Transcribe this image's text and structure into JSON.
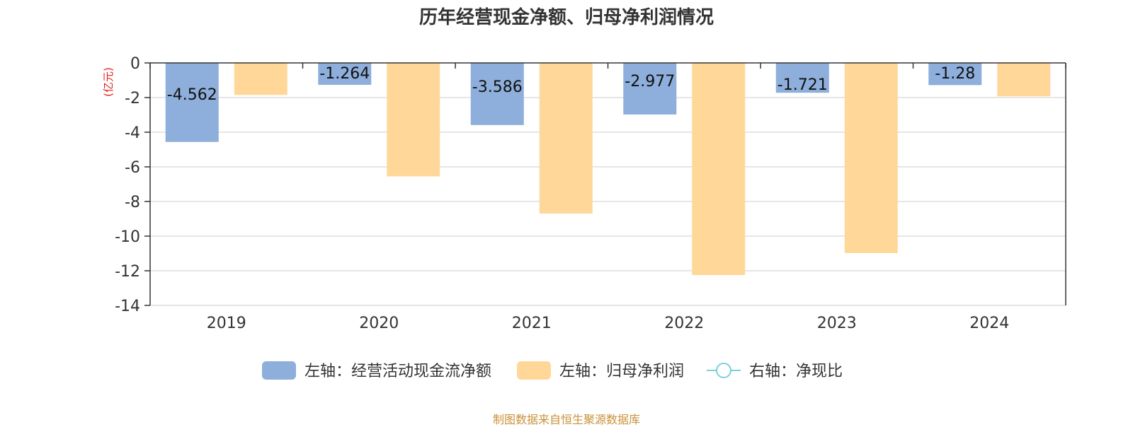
{
  "chart_data": {
    "type": "bar",
    "title": "历年经营现金净额、归母净利润情况",
    "ylabel": "(亿元)",
    "categories": [
      "2019",
      "2020",
      "2021",
      "2022",
      "2023",
      "2024"
    ],
    "ylim": [
      -14,
      0
    ],
    "yticks": [
      0,
      -2,
      -4,
      -6,
      -8,
      -10,
      -12,
      -14
    ],
    "series": [
      {
        "name": "左轴：经营活动现金流净额",
        "color": "#8eaedb",
        "values": [
          -4.562,
          -1.264,
          -3.586,
          -2.977,
          -1.721,
          -1.28
        ],
        "labels": [
          "-4.562",
          "-1.264",
          "-3.586",
          "-2.977",
          "-1.721",
          "-1.28"
        ]
      },
      {
        "name": "左轴：归母净利润",
        "color": "#ffd899",
        "values": [
          -1.85,
          -6.55,
          -8.7,
          -12.25,
          -10.98,
          -1.93
        ]
      }
    ],
    "line_series": [
      {
        "name": "右轴：净现比",
        "color": "#7ecfdc",
        "values": []
      }
    ],
    "grid": true,
    "legend_position": "bottom"
  },
  "source_text": "制图数据来自恒生聚源数据库"
}
